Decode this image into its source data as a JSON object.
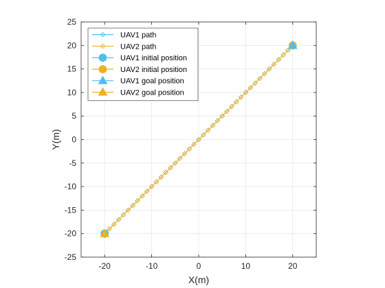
{
  "chart_data": {
    "type": "line",
    "xlabel": "X(m)",
    "ylabel": "Y(m)",
    "xlim": [
      -25,
      25
    ],
    "ylim": [
      -25,
      25
    ],
    "xticks": [
      -20,
      -10,
      0,
      10,
      20
    ],
    "yticks": [
      25,
      20,
      15,
      10,
      5,
      0,
      -5,
      -10,
      -15,
      -20,
      -25
    ],
    "grid": true,
    "legend_position": "top-left",
    "series": [
      {
        "name": "UAV1 path",
        "color": "#4DBEEE",
        "marker": "diamond",
        "x": [
          -20,
          -19,
          -18,
          -17,
          -16,
          -15,
          -14,
          -13,
          -12,
          -11,
          -10,
          -9,
          -8,
          -7,
          -6,
          -5,
          -4,
          -3,
          -2,
          -1,
          0,
          1,
          2,
          3,
          4,
          5,
          6,
          7,
          8,
          9,
          10,
          11,
          12,
          13,
          14,
          15,
          16,
          17,
          18,
          19,
          20
        ],
        "y": [
          -20,
          -19,
          -18,
          -17,
          -16,
          -15,
          -14,
          -13,
          -12,
          -11,
          -10,
          -9,
          -8,
          -7,
          -6,
          -5,
          -4,
          -3,
          -2,
          -1,
          0,
          1,
          2,
          3,
          4,
          5,
          6,
          7,
          8,
          9,
          10,
          11,
          12,
          13,
          14,
          15,
          16,
          17,
          18,
          19,
          20
        ]
      },
      {
        "name": "UAV2 path",
        "color": "#EDB120",
        "marker": "diamond",
        "x": [
          20,
          19,
          18,
          17,
          16,
          15,
          14,
          13,
          12,
          11,
          10,
          9,
          8,
          7,
          6,
          5,
          4,
          3,
          2,
          1,
          0,
          -1,
          -2,
          -3,
          -4,
          -5,
          -6,
          -7,
          -8,
          -9,
          -10,
          -11,
          -12,
          -13,
          -14,
          -15,
          -16,
          -17,
          -18,
          -19,
          -20
        ],
        "y": [
          20,
          19,
          18,
          17,
          16,
          15,
          14,
          13,
          12,
          11,
          10,
          9,
          8,
          7,
          6,
          5,
          4,
          3,
          2,
          1,
          0,
          -1,
          -2,
          -3,
          -4,
          -5,
          -6,
          -7,
          -8,
          -9,
          -10,
          -11,
          -12,
          -13,
          -14,
          -15,
          -16,
          -17,
          -18,
          -19,
          -20
        ]
      }
    ],
    "points": [
      {
        "name": "UAV1 initial position",
        "color": "#4DBEEE",
        "marker": "circle",
        "x": -20,
        "y": -20
      },
      {
        "name": "UAV2 initial position",
        "color": "#EDB120",
        "marker": "circle",
        "x": 20,
        "y": 20
      },
      {
        "name": "UAV1 goal position",
        "color": "#4DBEEE",
        "marker": "triangle",
        "x": 20,
        "y": 20
      },
      {
        "name": "UAV2 goal position",
        "color": "#EDB120",
        "marker": "triangle",
        "x": -20,
        "y": -20
      }
    ],
    "legend": [
      {
        "label": "UAV1 path",
        "color": "#4DBEEE",
        "marker": "diamond",
        "line": true
      },
      {
        "label": "UAV2 path",
        "color": "#EDB120",
        "marker": "diamond",
        "line": true
      },
      {
        "label": "UAV1 initial position",
        "color": "#4DBEEE",
        "marker": "circle",
        "line": true
      },
      {
        "label": "UAV2 initial position",
        "color": "#EDB120",
        "marker": "circle",
        "line": true
      },
      {
        "label": "UAV1 goal position",
        "color": "#4DBEEE",
        "marker": "triangle",
        "line": true
      },
      {
        "label": "UAV2 goal position",
        "color": "#EDB120",
        "marker": "triangle",
        "line": true
      }
    ]
  }
}
